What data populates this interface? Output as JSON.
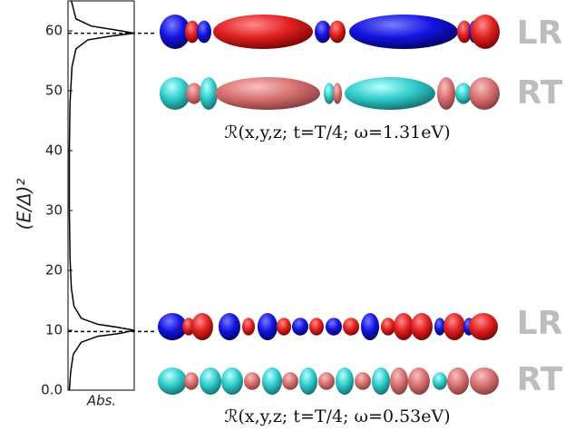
{
  "chart_data": {
    "type": "line",
    "y_label": "(E/Δ)²",
    "x_label": "Abs.",
    "ylim": [
      0,
      65
    ],
    "yticks": [
      {
        "value": 0,
        "label": "0.0"
      },
      10,
      20,
      30,
      40,
      50,
      60
    ],
    "xlim": [
      0,
      1
    ],
    "y": [
      0,
      3,
      6,
      8,
      9,
      9.5,
      10,
      10.5,
      11,
      12,
      14,
      17,
      22,
      30,
      40,
      48,
      54,
      57,
      58.5,
      59.2,
      59.6,
      60,
      60.8,
      62,
      65
    ],
    "series": [
      {
        "color": "#000000",
        "values": [
          0.02,
          0.04,
          0.08,
          0.2,
          0.45,
          0.8,
          1.0,
          0.75,
          0.45,
          0.2,
          0.09,
          0.05,
          0.03,
          0.02,
          0.02,
          0.03,
          0.06,
          0.12,
          0.3,
          0.7,
          1.0,
          0.8,
          0.35,
          0.12,
          0.05
        ]
      }
    ],
    "peak_lines": [
      59.6,
      9.8
    ],
    "tags": [
      "LR",
      "RT",
      "LR",
      "RT"
    ],
    "captions": [
      "ℛ(x,y,z; t=T/4; ω=1.31eV)",
      "ℛ(x,y,z; t=T/4; ω=0.53eV)"
    ]
  }
}
